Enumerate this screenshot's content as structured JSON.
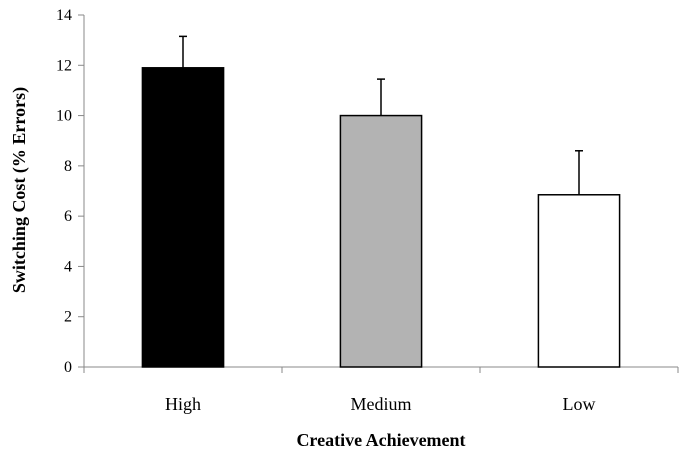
{
  "chart_data": {
    "type": "bar",
    "title": "",
    "xlabel": "Creative Achievement",
    "ylabel": "Switching Cost  (% Errors)",
    "categories": [
      "High",
      "Medium",
      "Low"
    ],
    "values": [
      11.9,
      10.0,
      6.85
    ],
    "error_upper": [
      1.25,
      1.45,
      1.75
    ],
    "bar_colors": [
      "#000000",
      "#b3b3b3",
      "#ffffff"
    ],
    "bar_edge_color": "#000000",
    "ylim": [
      0,
      14
    ],
    "yticks": [
      "0",
      "2",
      "4",
      "6",
      "8",
      "10",
      "12",
      "14"
    ],
    "grid": false,
    "legend": "none"
  }
}
